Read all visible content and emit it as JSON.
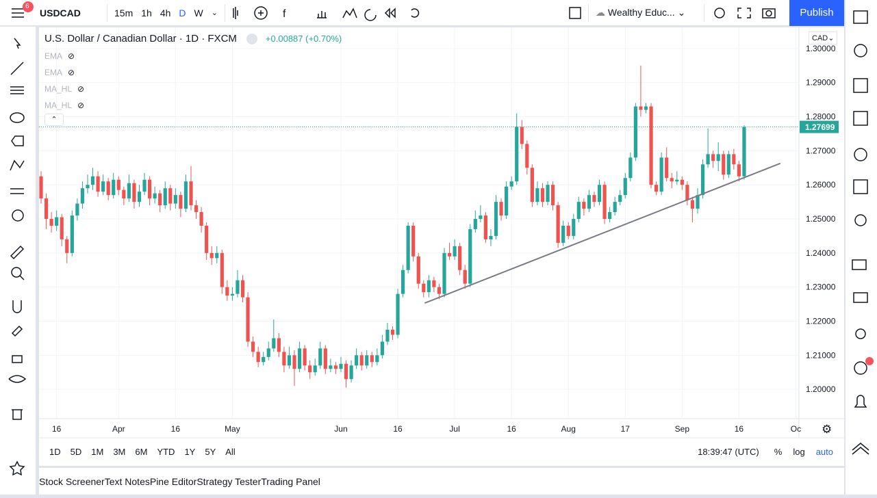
{
  "ui": {
    "badge": "6",
    "symbol": "USDCAD",
    "intervals": [
      "15m",
      "1h",
      "4h",
      "D",
      "W"
    ],
    "layout_name": "Wealthy Educ...",
    "publish": "Publish",
    "legend_title": "U.S. Dollar / Canadian Dollar · 1D · FXCM",
    "change": "+0.00887 (+0.70%)",
    "indicators": [
      "EMA",
      "EMA",
      "MA_HL",
      "MA_HL"
    ],
    "currency": "CAD",
    "ranges": [
      "1D",
      "5D",
      "1M",
      "3M",
      "6M",
      "YTD",
      "1Y",
      "5Y",
      "All"
    ],
    "clock": "18:39:47 (UTC)",
    "scale_opts": [
      "%",
      "log",
      "auto"
    ],
    "tabs": [
      "Stock Screener",
      "Text Notes",
      "Pine Editor",
      "Strategy Tester",
      "Trading Panel"
    ]
  },
  "chart_data": {
    "type": "candlestick",
    "up_color": "#26a69a",
    "down_color": "#ef5350",
    "grid": true,
    "xlim": [
      -0.4,
      146.6
    ],
    "ylim": [
      1.1914,
      1.3062
    ],
    "xticks": [
      {
        "value": 3,
        "label": "16"
      },
      {
        "value": 15,
        "label": "Apr"
      },
      {
        "value": 26,
        "label": "16"
      },
      {
        "value": 37,
        "label": "May"
      },
      {
        "value": 58,
        "label": "Jun"
      },
      {
        "value": 69,
        "label": "16"
      },
      {
        "value": 80,
        "label": "Jul"
      },
      {
        "value": 91,
        "label": "16"
      },
      {
        "value": 102,
        "label": "Aug"
      },
      {
        "value": 113,
        "label": "17"
      },
      {
        "value": 124,
        "label": "Sep"
      },
      {
        "value": 135,
        "label": "16"
      },
      {
        "value": 146,
        "label": "Oc"
      }
    ],
    "yticks": [
      {
        "value": 1.3,
        "label": "1.30000"
      },
      {
        "value": 1.29,
        "label": "1.29000"
      },
      {
        "value": 1.28,
        "label": "1.28000"
      },
      {
        "value": 1.27,
        "label": "1.27000"
      },
      {
        "value": 1.26,
        "label": "1.26000"
      },
      {
        "value": 1.25,
        "label": "1.25000"
      },
      {
        "value": 1.24,
        "label": "1.24000"
      },
      {
        "value": 1.23,
        "label": "1.23000"
      },
      {
        "value": 1.22,
        "label": "1.22000"
      },
      {
        "value": 1.21,
        "label": "1.21000"
      },
      {
        "value": 1.2,
        "label": "1.20000"
      }
    ],
    "price_label": "1.27699",
    "trendline": [
      {
        "x": 74.2,
        "y": 1.2253
      },
      {
        "x": 143,
        "y": 1.2663
      }
    ],
    "ohlc": [
      [
        1.2625,
        1.264,
        1.2545,
        1.256
      ],
      [
        1.256,
        1.2575,
        1.247,
        1.25
      ],
      [
        1.25,
        1.252,
        1.246,
        1.248
      ],
      [
        1.248,
        1.2525,
        1.2465,
        1.2505
      ],
      [
        1.2505,
        1.2515,
        1.242,
        1.244
      ],
      [
        1.244,
        1.245,
        1.237,
        1.24
      ],
      [
        1.24,
        1.2525,
        1.239,
        1.251
      ],
      [
        1.251,
        1.256,
        1.2495,
        1.2545
      ],
      [
        1.2545,
        1.261,
        1.253,
        1.259
      ],
      [
        1.259,
        1.263,
        1.2575,
        1.26
      ],
      [
        1.26,
        1.265,
        1.2585,
        1.2625
      ],
      [
        1.2625,
        1.264,
        1.2565,
        1.258
      ],
      [
        1.258,
        1.263,
        1.257,
        1.261
      ],
      [
        1.261,
        1.262,
        1.2555,
        1.257
      ],
      [
        1.257,
        1.2635,
        1.256,
        1.2615
      ],
      [
        1.2615,
        1.2625,
        1.257,
        1.2585
      ],
      [
        1.2585,
        1.2595,
        1.254,
        1.256
      ],
      [
        1.256,
        1.263,
        1.255,
        1.2605
      ],
      [
        1.2605,
        1.2615,
        1.253,
        1.255
      ],
      [
        1.255,
        1.26,
        1.2535,
        1.258
      ],
      [
        1.258,
        1.2635,
        1.257,
        1.2615
      ],
      [
        1.2615,
        1.2625,
        1.254,
        1.256
      ],
      [
        1.256,
        1.2595,
        1.2545,
        1.2575
      ],
      [
        1.2575,
        1.2585,
        1.252,
        1.254
      ],
      [
        1.254,
        1.261,
        1.253,
        1.259
      ],
      [
        1.259,
        1.26,
        1.2525,
        1.2545
      ],
      [
        1.2545,
        1.259,
        1.253,
        1.257
      ],
      [
        1.257,
        1.258,
        1.2505,
        1.253
      ],
      [
        1.253,
        1.263,
        1.252,
        1.261
      ],
      [
        1.261,
        1.2655,
        1.2525,
        1.254
      ],
      [
        1.254,
        1.2555,
        1.25,
        1.252
      ],
      [
        1.252,
        1.2535,
        1.246,
        1.248
      ],
      [
        1.248,
        1.249,
        1.238,
        1.24
      ],
      [
        1.24,
        1.242,
        1.2365,
        1.2385
      ],
      [
        1.2385,
        1.242,
        1.237,
        1.24
      ],
      [
        1.24,
        1.241,
        1.228,
        1.23
      ],
      [
        1.23,
        1.232,
        1.226,
        1.2275
      ],
      [
        1.2275,
        1.23,
        1.226,
        1.228
      ],
      [
        1.228,
        1.235,
        1.227,
        1.232
      ],
      [
        1.232,
        1.2335,
        1.2255,
        1.227
      ],
      [
        1.227,
        1.2285,
        1.2125,
        1.214
      ],
      [
        1.214,
        1.2155,
        1.2095,
        1.211
      ],
      [
        1.211,
        1.2125,
        1.2065,
        1.208
      ],
      [
        1.208,
        1.211,
        1.207,
        1.2095
      ],
      [
        1.2095,
        1.214,
        1.2085,
        1.212
      ],
      [
        1.212,
        1.2205,
        1.211,
        1.215
      ],
      [
        1.215,
        1.2165,
        1.2095,
        1.211
      ],
      [
        1.211,
        1.2125,
        1.205,
        1.207
      ],
      [
        1.207,
        1.2125,
        1.206,
        1.21
      ],
      [
        1.21,
        1.2115,
        1.201,
        1.206
      ],
      [
        1.206,
        1.214,
        1.205,
        1.212
      ],
      [
        1.212,
        1.213,
        1.2055,
        1.207
      ],
      [
        1.207,
        1.2085,
        1.203,
        1.205
      ],
      [
        1.205,
        1.209,
        1.204,
        1.207
      ],
      [
        1.207,
        1.214,
        1.206,
        1.212
      ],
      [
        1.212,
        1.213,
        1.2045,
        1.206
      ],
      [
        1.206,
        1.209,
        1.205,
        1.207
      ],
      [
        1.207,
        1.208,
        1.2045,
        1.206
      ],
      [
        1.206,
        1.2095,
        1.205,
        1.2075
      ],
      [
        1.2075,
        1.2085,
        1.2005,
        1.203
      ],
      [
        1.203,
        1.2085,
        1.202,
        1.207
      ],
      [
        1.207,
        1.212,
        1.206,
        1.21
      ],
      [
        1.21,
        1.211,
        1.2055,
        1.207
      ],
      [
        1.207,
        1.2115,
        1.206,
        1.21
      ],
      [
        1.21,
        1.211,
        1.2065,
        1.208
      ],
      [
        1.208,
        1.212,
        1.207,
        1.21
      ],
      [
        1.21,
        1.216,
        1.209,
        1.214
      ],
      [
        1.214,
        1.2195,
        1.213,
        1.2175
      ],
      [
        1.2175,
        1.2185,
        1.2145,
        1.216
      ],
      [
        1.216,
        1.2295,
        1.215,
        1.228
      ],
      [
        1.228,
        1.2365,
        1.227,
        1.235
      ],
      [
        1.235,
        1.249,
        1.234,
        1.248
      ],
      [
        1.248,
        1.249,
        1.2375,
        1.239
      ],
      [
        1.239,
        1.24,
        1.2295,
        1.231
      ],
      [
        1.231,
        1.232,
        1.227,
        1.2285
      ],
      [
        1.2285,
        1.2335,
        1.227,
        1.232
      ],
      [
        1.232,
        1.233,
        1.2285,
        1.23
      ],
      [
        1.23,
        1.231,
        1.2265,
        1.228
      ],
      [
        1.228,
        1.2415,
        1.227,
        1.24
      ],
      [
        1.24,
        1.243,
        1.238,
        1.239
      ],
      [
        1.239,
        1.244,
        1.238,
        1.242
      ],
      [
        1.242,
        1.243,
        1.2335,
        1.235
      ],
      [
        1.235,
        1.2365,
        1.2295,
        1.231
      ],
      [
        1.231,
        1.2485,
        1.23,
        1.247
      ],
      [
        1.247,
        1.2525,
        1.246,
        1.25
      ],
      [
        1.25,
        1.254,
        1.249,
        1.251
      ],
      [
        1.251,
        1.252,
        1.243,
        1.244
      ],
      [
        1.244,
        1.247,
        1.242,
        1.245
      ],
      [
        1.245,
        1.257,
        1.244,
        1.255
      ],
      [
        1.255,
        1.256,
        1.2495,
        1.251
      ],
      [
        1.251,
        1.261,
        1.25,
        1.2595
      ],
      [
        1.2595,
        1.2625,
        1.2585,
        1.261
      ],
      [
        1.261,
        1.281,
        1.26,
        1.277
      ],
      [
        1.277,
        1.279,
        1.2705,
        1.272
      ],
      [
        1.272,
        1.273,
        1.263,
        1.265
      ],
      [
        1.265,
        1.266,
        1.2535,
        1.255
      ],
      [
        1.255,
        1.261,
        1.254,
        1.259
      ],
      [
        1.259,
        1.2605,
        1.2535,
        1.255
      ],
      [
        1.255,
        1.261,
        1.254,
        1.26
      ],
      [
        1.26,
        1.261,
        1.2525,
        1.254
      ],
      [
        1.254,
        1.255,
        1.2415,
        1.243
      ],
      [
        1.243,
        1.2495,
        1.242,
        1.248
      ],
      [
        1.248,
        1.249,
        1.244,
        1.245
      ],
      [
        1.245,
        1.2515,
        1.244,
        1.25
      ],
      [
        1.25,
        1.2565,
        1.249,
        1.255
      ],
      [
        1.255,
        1.256,
        1.251,
        1.253
      ],
      [
        1.253,
        1.2585,
        1.252,
        1.257
      ],
      [
        1.257,
        1.258,
        1.2535,
        1.255
      ],
      [
        1.255,
        1.2615,
        1.254,
        1.26
      ],
      [
        1.26,
        1.261,
        1.2485,
        1.25
      ],
      [
        1.25,
        1.2535,
        1.249,
        1.252
      ],
      [
        1.252,
        1.2565,
        1.251,
        1.255
      ],
      [
        1.255,
        1.2585,
        1.254,
        1.257
      ],
      [
        1.257,
        1.2635,
        1.256,
        1.262
      ],
      [
        1.262,
        1.2695,
        1.261,
        1.268
      ],
      [
        1.268,
        1.284,
        1.267,
        1.283
      ],
      [
        1.283,
        1.295,
        1.28,
        1.282
      ],
      [
        1.282,
        1.284,
        1.281,
        1.283
      ],
      [
        1.283,
        1.284,
        1.259,
        1.26
      ],
      [
        1.26,
        1.261,
        1.257,
        1.258
      ],
      [
        1.258,
        1.2695,
        1.257,
        1.268
      ],
      [
        1.268,
        1.271,
        1.261,
        1.262
      ],
      [
        1.262,
        1.2635,
        1.259,
        1.261
      ],
      [
        1.261,
        1.264,
        1.26,
        1.2615
      ],
      [
        1.2615,
        1.2625,
        1.2585,
        1.26
      ],
      [
        1.26,
        1.261,
        1.254,
        1.2555
      ],
      [
        1.2555,
        1.2565,
        1.249,
        1.253
      ],
      [
        1.253,
        1.259,
        1.2515,
        1.257
      ],
      [
        1.257,
        1.2675,
        1.256,
        1.266
      ],
      [
        1.266,
        1.2765,
        1.265,
        1.269
      ],
      [
        1.269,
        1.27,
        1.265,
        1.267
      ],
      [
        1.267,
        1.2725,
        1.264,
        1.269
      ],
      [
        1.269,
        1.27,
        1.2615,
        1.263
      ],
      [
        1.263,
        1.27,
        1.262,
        1.269
      ],
      [
        1.269,
        1.2705,
        1.2645,
        1.266
      ],
      [
        1.266,
        1.267,
        1.261,
        1.2625
      ],
      [
        1.2625,
        1.2775,
        1.2615,
        1.27699
      ]
    ]
  }
}
